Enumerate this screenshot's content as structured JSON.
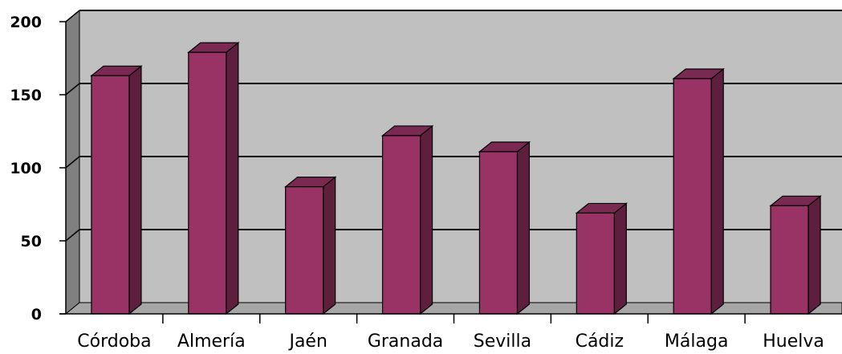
{
  "chart_data": {
    "type": "bar",
    "title": "",
    "xlabel": "",
    "ylabel": "",
    "categories": [
      "Córdoba",
      "Almería",
      "Jaén",
      "Granada",
      "Sevilla",
      "Cádiz",
      "Málaga",
      "Huelva"
    ],
    "values": [
      163,
      179,
      87,
      122,
      111,
      69,
      161,
      74
    ],
    "ylim": [
      0,
      200
    ],
    "yticks": [
      0,
      50,
      100,
      150,
      200
    ],
    "grid": true,
    "legend": "none",
    "style": "3d-column",
    "colors": {
      "bar_front": "#993366",
      "bar_side": "#5e1e3e",
      "bar_top": "#7a2a52",
      "plot_back": "#c0c0c0",
      "plot_side": "#808080",
      "plot_floor": "#a6a6a6"
    }
  }
}
